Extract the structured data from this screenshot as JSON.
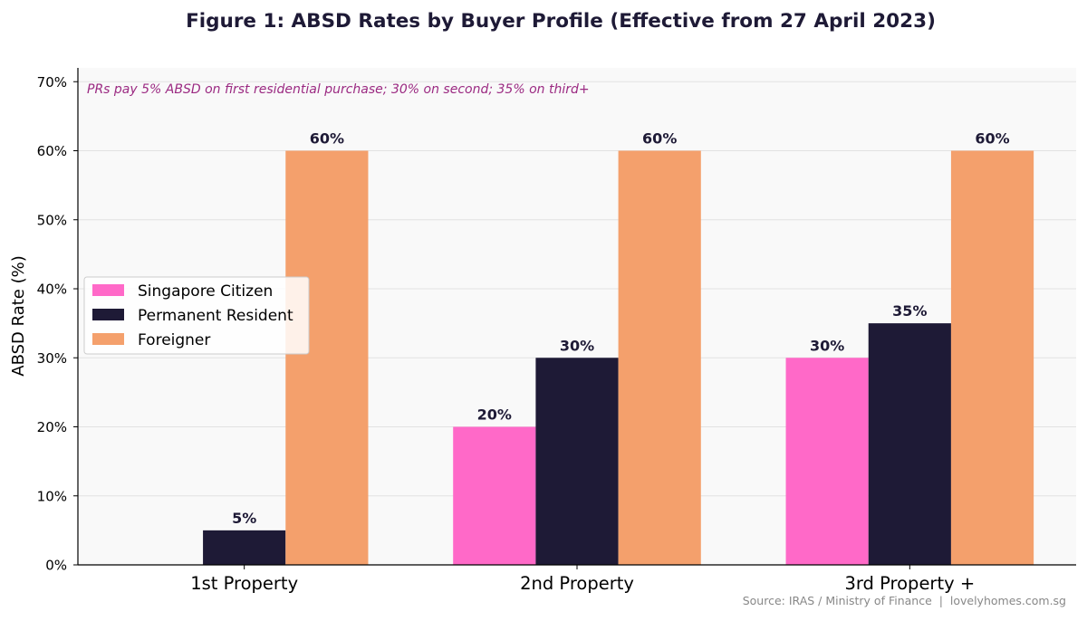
{
  "chart_data": {
    "type": "bar",
    "title": "Figure 1: ABSD Rates by Buyer Profile (Effective from 27 April 2023)",
    "ylabel": "ABSD Rate (%)",
    "xlabel": "",
    "categories": [
      "1st Property",
      "2nd Property",
      "3rd Property +"
    ],
    "series": [
      {
        "name": "Singapore Citizen",
        "color": "#ff69c8",
        "values": [
          0,
          20,
          30
        ]
      },
      {
        "name": "Permanent Resident",
        "color": "#1e1a36",
        "values": [
          5,
          30,
          35
        ]
      },
      {
        "name": "Foreigner",
        "color": "#f4a06c",
        "values": [
          60,
          60,
          60
        ]
      }
    ],
    "ylim": [
      0,
      72
    ],
    "yticks": [
      0,
      10,
      20,
      30,
      40,
      50,
      60,
      70
    ],
    "ytick_suffix": "%",
    "value_label_suffix": "%",
    "grid": "horizontal",
    "legend_position": "center-left",
    "annotation": "PRs pay 5% ABSD on first residential purchase; 30% on second; 35% on third+",
    "source": "Source: IRAS / Ministry of Finance  |  lovelyhomes.com.sg",
    "colors": {
      "plot_background": "#f9f9f9",
      "grid": "#e2e2e2",
      "title": "#1e1a36",
      "annotation": "#9b2a82",
      "source": "#888888",
      "value_label": "#1e1a36"
    }
  }
}
